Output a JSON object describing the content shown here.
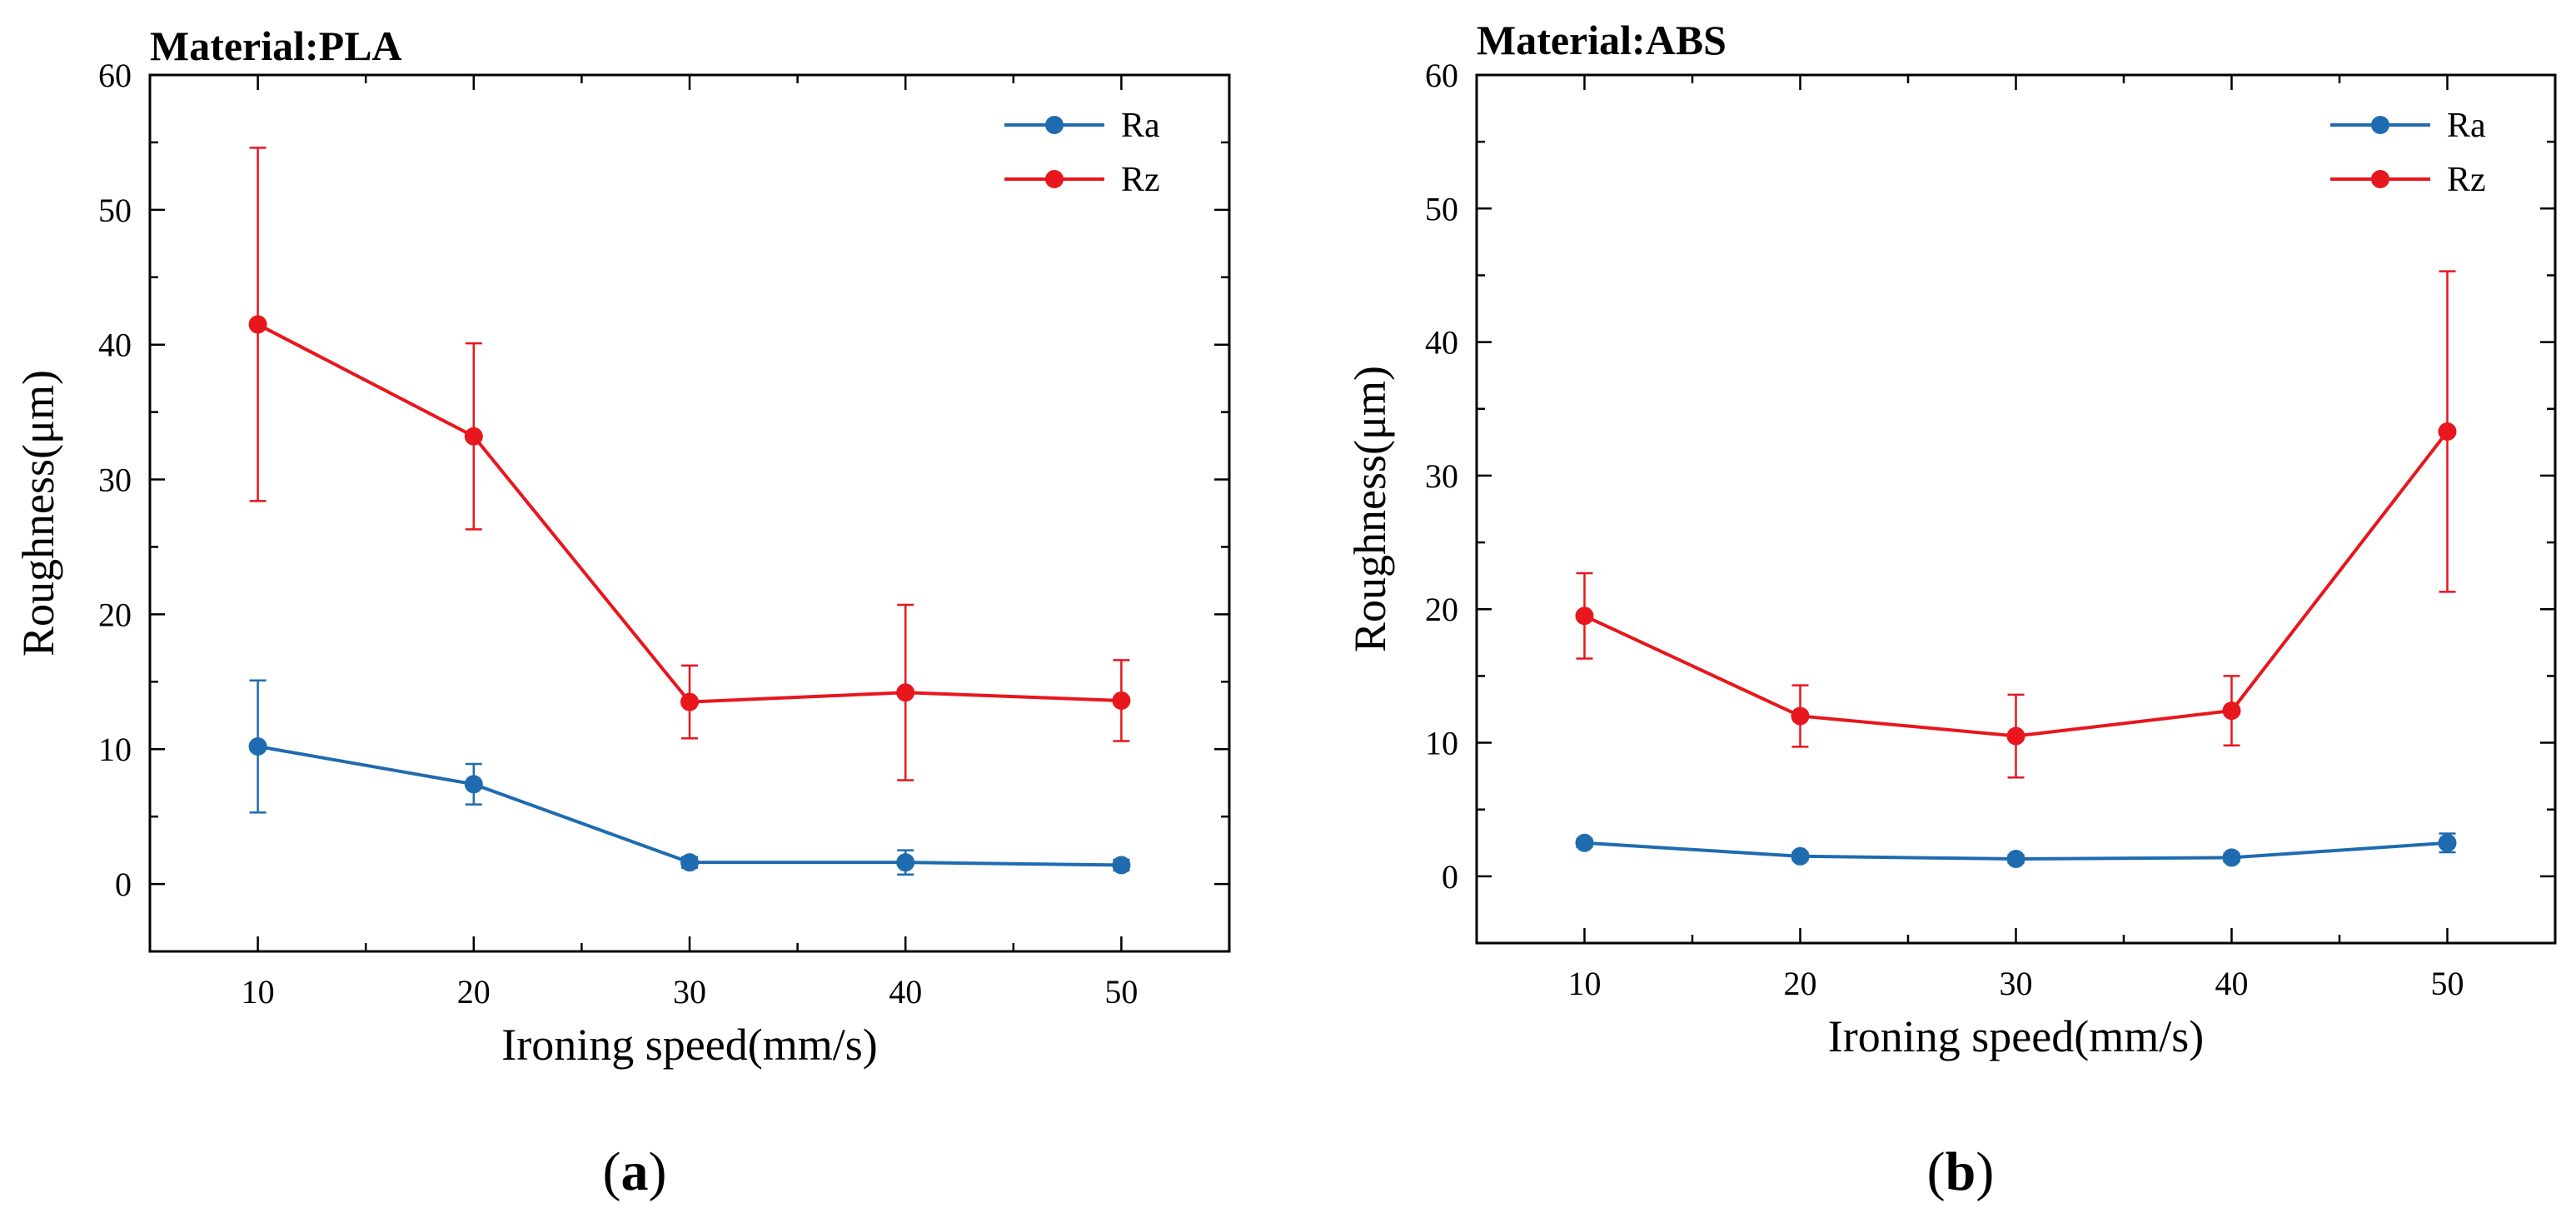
{
  "chart_data": [
    {
      "type": "line",
      "title": "Material:PLA",
      "xlabel": "Ironing speed(mm/s)",
      "ylabel": "Roughness(μm)",
      "x": [
        10,
        20,
        30,
        40,
        50
      ],
      "xlim": [
        5,
        55
      ],
      "ylim": [
        -5,
        60
      ],
      "xticks": [
        10,
        20,
        30,
        40,
        50
      ],
      "yticks": [
        0,
        10,
        20,
        30,
        40,
        50,
        60
      ],
      "legend_position": "top-right",
      "caption": {
        "open": "(",
        "letter": "a",
        "close": ")"
      },
      "series": [
        {
          "name": "Ra",
          "color": "#1f6bb0",
          "values": [
            10.2,
            7.4,
            1.6,
            1.6,
            1.4
          ],
          "errors": [
            4.9,
            1.5,
            0.4,
            0.9,
            0.4
          ]
        },
        {
          "name": "Rz",
          "color": "#e8161d",
          "values": [
            41.5,
            33.2,
            13.5,
            14.2,
            13.6
          ],
          "errors": [
            13.1,
            6.9,
            2.7,
            6.5,
            3.0
          ]
        }
      ]
    },
    {
      "type": "line",
      "title": "Material:ABS",
      "xlabel": "Ironing speed(mm/s)",
      "ylabel": "Roughness(μm)",
      "x": [
        10,
        20,
        30,
        40,
        50
      ],
      "xlim": [
        5,
        55
      ],
      "ylim": [
        -5,
        60
      ],
      "xticks": [
        10,
        20,
        30,
        40,
        50
      ],
      "yticks": [
        0,
        10,
        20,
        30,
        40,
        50,
        60
      ],
      "legend_position": "top-right",
      "caption": {
        "open": "(",
        "letter": "b",
        "close": ")"
      },
      "series": [
        {
          "name": "Ra",
          "color": "#1f6bb0",
          "values": [
            2.5,
            1.5,
            1.3,
            1.4,
            2.5
          ],
          "errors": [
            0.3,
            0.3,
            0.3,
            0.3,
            0.7
          ]
        },
        {
          "name": "Rz",
          "color": "#e8161d",
          "values": [
            19.5,
            12.0,
            10.5,
            12.4,
            33.3
          ],
          "errors": [
            3.2,
            2.3,
            3.1,
            2.6,
            12.0
          ]
        }
      ]
    }
  ]
}
